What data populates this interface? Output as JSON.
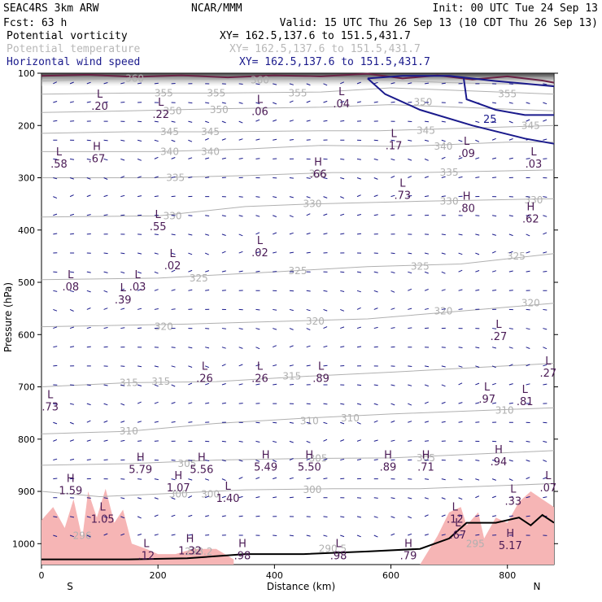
{
  "header": {
    "model": "SEAC4RS   3km ARW",
    "source": "NCAR/MMM",
    "init": "Init: 00 UTC Tue 24 Sep 13",
    "fcst": "Fcst:    63 h",
    "valid": "Valid: 15 UTC Thu 26 Sep 13 (10 CDT Thu 26 Sep 13)",
    "fields": [
      {
        "name": "Potential vorticity",
        "xy": "XY= 162.5,137.6 to 151.5,431.7",
        "color": "#000000"
      },
      {
        "name": "Potential temperature",
        "xy": "XY= 162.5,137.6 to 151.5,431.7",
        "color": "#b8b8b8"
      },
      {
        "name": "Horizontal wind speed",
        "xy": "XY= 162.5,137.6 to 151.5,431.7",
        "color": "#1a1a8c"
      }
    ]
  },
  "chart_data": {
    "type": "cross-section",
    "xlabel": "Distance (km)",
    "ylabel": "Pressure (hPa)",
    "xlim": [
      0,
      880
    ],
    "ylim": [
      1040,
      100
    ],
    "x_ticks": [
      0,
      200,
      400,
      600,
      800
    ],
    "y_ticks": [
      100,
      200,
      300,
      400,
      500,
      600,
      700,
      800,
      900,
      1000
    ],
    "x_end_labels": {
      "left": "S",
      "right": "N"
    },
    "colors": {
      "theta": "#b0b0b0",
      "pv_labels": "#4a1a55",
      "wind": "#1a1a8c",
      "shade": "#f6b5b5",
      "terrain": "#000000"
    },
    "theta_isentropes": [
      {
        "value": "360",
        "points": [
          [
            0,
            115
          ],
          [
            150,
            110
          ],
          [
            300,
            112
          ],
          [
            460,
            108
          ],
          [
            560,
            112
          ],
          [
            700,
            118
          ],
          [
            880,
            122
          ]
        ],
        "labels": [
          [
            160,
            110
          ],
          [
            375,
            113
          ]
        ]
      },
      {
        "value": "355",
        "points": [
          [
            0,
            140
          ],
          [
            150,
            138
          ],
          [
            300,
            138
          ],
          [
            480,
            136
          ],
          [
            600,
            128
          ],
          [
            880,
            140
          ]
        ],
        "labels": [
          [
            210,
            138
          ],
          [
            300,
            138
          ],
          [
            440,
            138
          ],
          [
            800,
            140
          ]
        ]
      },
      {
        "value": "350",
        "points": [
          [
            0,
            175
          ],
          [
            150,
            172
          ],
          [
            300,
            168
          ],
          [
            480,
            165
          ],
          [
            600,
            160
          ],
          [
            880,
            172
          ]
        ],
        "labels": [
          [
            225,
            172
          ],
          [
            305,
            170
          ],
          [
            655,
            155
          ]
        ]
      },
      {
        "value": "345",
        "points": [
          [
            0,
            215
          ],
          [
            150,
            212
          ],
          [
            300,
            212
          ],
          [
            480,
            210
          ],
          [
            580,
            210
          ],
          [
            880,
            200
          ]
        ],
        "labels": [
          [
            220,
            212
          ],
          [
            290,
            212
          ],
          [
            660,
            210
          ],
          [
            840,
            200
          ]
        ]
      },
      {
        "value": "340",
        "points": [
          [
            0,
            250
          ],
          [
            200,
            250
          ],
          [
            350,
            245
          ],
          [
            480,
            238
          ],
          [
            620,
            240
          ],
          [
            800,
            232
          ],
          [
            880,
            232
          ]
        ],
        "labels": [
          [
            220,
            250
          ],
          [
            290,
            250
          ],
          [
            690,
            240
          ]
        ]
      },
      {
        "value": "335",
        "points": [
          [
            0,
            300
          ],
          [
            200,
            300
          ],
          [
            350,
            296
          ],
          [
            500,
            290
          ],
          [
            650,
            290
          ],
          [
            880,
            285
          ]
        ],
        "labels": [
          [
            230,
            300
          ],
          [
            475,
            292
          ],
          [
            700,
            290
          ]
        ]
      },
      {
        "value": "330",
        "points": [
          [
            0,
            375
          ],
          [
            200,
            373
          ],
          [
            350,
            355
          ],
          [
            470,
            350
          ],
          [
            650,
            345
          ],
          [
            880,
            340
          ]
        ],
        "labels": [
          [
            225,
            373
          ],
          [
            465,
            350
          ],
          [
            700,
            345
          ],
          [
            845,
            343
          ]
        ]
      },
      {
        "value": "325",
        "points": [
          [
            0,
            495
          ],
          [
            200,
            492
          ],
          [
            400,
            480
          ],
          [
            560,
            470
          ],
          [
            720,
            465
          ],
          [
            880,
            445
          ]
        ],
        "labels": [
          [
            270,
            492
          ],
          [
            440,
            478
          ],
          [
            650,
            470
          ],
          [
            815,
            450
          ]
        ]
      },
      {
        "value": "320",
        "points": [
          [
            0,
            585
          ],
          [
            250,
            580
          ],
          [
            400,
            575
          ],
          [
            560,
            570
          ],
          [
            720,
            555
          ],
          [
            880,
            540
          ]
        ],
        "labels": [
          [
            210,
            585
          ],
          [
            470,
            575
          ],
          [
            690,
            555
          ],
          [
            840,
            540
          ]
        ]
      },
      {
        "value": "315",
        "points": [
          [
            0,
            700
          ],
          [
            150,
            692
          ],
          [
            300,
            690
          ],
          [
            450,
            680
          ],
          [
            600,
            672
          ],
          [
            880,
            655
          ]
        ],
        "labels": [
          [
            150,
            692
          ],
          [
            205,
            690
          ],
          [
            430,
            680
          ]
        ]
      },
      {
        "value": "310",
        "points": [
          [
            0,
            790
          ],
          [
            150,
            785
          ],
          [
            300,
            770
          ],
          [
            450,
            760
          ],
          [
            600,
            752
          ],
          [
            880,
            740
          ]
        ],
        "labels": [
          [
            150,
            785
          ],
          [
            460,
            765
          ],
          [
            530,
            760
          ],
          [
            795,
            745
          ]
        ]
      },
      {
        "value": "305",
        "points": [
          [
            0,
            850
          ],
          [
            150,
            847
          ],
          [
            300,
            840
          ],
          [
            450,
            837
          ],
          [
            600,
            836
          ],
          [
            880,
            822
          ]
        ],
        "labels": [
          [
            250,
            847
          ],
          [
            475,
            837
          ],
          [
            660,
            836
          ]
        ]
      },
      {
        "value": "300",
        "points": [
          [
            0,
            900
          ],
          [
            100,
            910
          ],
          [
            200,
            905
          ],
          [
            350,
            897
          ],
          [
            500,
            895
          ],
          [
            650,
            895
          ],
          [
            880,
            885
          ]
        ],
        "labels": [
          [
            235,
            905
          ],
          [
            290,
            905
          ],
          [
            465,
            897
          ]
        ]
      },
      {
        "value": "296",
        "points": [
          [
            0,
            985
          ]
        ],
        "labels": [
          [
            70,
            985
          ]
        ]
      },
      {
        "value": "298.2",
        "points": [
          [
            210,
            1010
          ]
        ],
        "labels": [
          [
            270,
            1015
          ]
        ]
      },
      {
        "value": "290.5",
        "points": [
          [
            450,
            1008
          ]
        ],
        "labels": [
          [
            500,
            1010
          ]
        ]
      },
      {
        "value": "295",
        "points": [
          [
            730,
            1000
          ]
        ],
        "labels": [
          [
            745,
            1000
          ]
        ]
      }
    ],
    "pv_extrema": [
      {
        "type": "L",
        "value": ".20",
        "x": 100,
        "p": 150
      },
      {
        "type": "L",
        "value": ".22",
        "x": 205,
        "p": 165
      },
      {
        "type": "L",
        "value": ".06",
        "x": 375,
        "p": 160
      },
      {
        "type": "L",
        "value": ".04",
        "x": 515,
        "p": 145
      },
      {
        "type": "L",
        "value": ".58",
        "x": 30,
        "p": 260
      },
      {
        "type": "H",
        "value": ".67",
        "x": 95,
        "p": 250
      },
      {
        "type": "H",
        "value": ".66",
        "x": 475,
        "p": 280
      },
      {
        "type": "L",
        "value": ".17",
        "x": 605,
        "p": 225
      },
      {
        "type": "L",
        "value": ".09",
        "x": 730,
        "p": 240
      },
      {
        "type": "L",
        "value": ".03",
        "x": 845,
        "p": 260
      },
      {
        "type": "L",
        "value": ".73",
        "x": 620,
        "p": 320
      },
      {
        "type": "H",
        "value": ".80",
        "x": 730,
        "p": 345
      },
      {
        "type": "H",
        "value": ".62",
        "x": 840,
        "p": 365
      },
      {
        "type": "L",
        "value": ".55",
        "x": 200,
        "p": 380
      },
      {
        "type": "L",
        "value": ".02",
        "x": 375,
        "p": 430
      },
      {
        "type": "L",
        "value": ".02",
        "x": 225,
        "p": 455
      },
      {
        "type": "L",
        "value": ".08",
        "x": 50,
        "p": 495
      },
      {
        "type": "L",
        "value": ".03",
        "x": 165,
        "p": 495
      },
      {
        "type": "L",
        "value": ".39",
        "x": 140,
        "p": 520
      },
      {
        "type": "L",
        "value": ".27",
        "x": 785,
        "p": 590
      },
      {
        "type": "L",
        "value": ".27",
        "x": 870,
        "p": 660
      },
      {
        "type": "L",
        "value": ".26",
        "x": 280,
        "p": 670
      },
      {
        "type": "L",
        "value": ".26",
        "x": 375,
        "p": 670
      },
      {
        "type": "L",
        "value": ".89",
        "x": 480,
        "p": 670
      },
      {
        "type": "L",
        "value": ".73",
        "x": 15,
        "p": 725
      },
      {
        "type": "L",
        "value": ".97",
        "x": 765,
        "p": 710
      },
      {
        "type": "L",
        "value": ".81",
        "x": 830,
        "p": 715
      },
      {
        "type": "H",
        "value": "5.79",
        "x": 170,
        "p": 845
      },
      {
        "type": "H",
        "value": "5.56",
        "x": 275,
        "p": 845
      },
      {
        "type": "H",
        "value": "5.49",
        "x": 385,
        "p": 840
      },
      {
        "type": "H",
        "value": "5.50",
        "x": 460,
        "p": 840
      },
      {
        "type": "H",
        "value": ".89",
        "x": 595,
        "p": 840
      },
      {
        "type": "H",
        "value": ".71",
        "x": 660,
        "p": 840
      },
      {
        "type": "H",
        "value": ".94",
        "x": 785,
        "p": 830
      },
      {
        "type": "H",
        "value": "1.59",
        "x": 50,
        "p": 885
      },
      {
        "type": "H",
        "value": "1.07",
        "x": 235,
        "p": 880
      },
      {
        "type": "L",
        "value": "1.40",
        "x": 320,
        "p": 900
      },
      {
        "type": "L",
        "value": ".07",
        "x": 870,
        "p": 880
      },
      {
        "type": "L",
        "value": ".33",
        "x": 810,
        "p": 905
      },
      {
        "type": "L",
        "value": "1.05",
        "x": 105,
        "p": 940
      },
      {
        "type": "L",
        "value": ".12",
        "x": 710,
        "p": 940
      },
      {
        "type": "L",
        "value": ".67",
        "x": 715,
        "p": 970
      },
      {
        "type": "H",
        "value": "1.32",
        "x": 255,
        "p": 1000
      },
      {
        "type": "L",
        "value": ".12",
        "x": 180,
        "p": 1010
      },
      {
        "type": "H",
        "value": ".98",
        "x": 345,
        "p": 1010
      },
      {
        "type": "L",
        "value": ".98",
        "x": 510,
        "p": 1010
      },
      {
        "type": "H",
        "value": ".79",
        "x": 630,
        "p": 1010
      },
      {
        "type": "H",
        "value": "5.17",
        "x": 805,
        "p": 990
      }
    ],
    "wind_speed_contours": [
      {
        "value": "25",
        "points": [
          [
            560,
            110
          ],
          [
            590,
            140
          ],
          [
            650,
            170
          ],
          [
            740,
            200
          ],
          [
            830,
            225
          ],
          [
            880,
            235
          ]
        ],
        "label": [
          770,
          195
        ]
      },
      {
        "value": "",
        "points": [
          [
            560,
            110
          ],
          [
            620,
            105
          ],
          [
            700,
            105
          ],
          [
            780,
            115
          ],
          [
            880,
            125
          ]
        ],
        "label": null
      },
      {
        "value": "",
        "points": [
          [
            725,
            110
          ],
          [
            730,
            150
          ],
          [
            780,
            170
          ],
          [
            830,
            180
          ],
          [
            880,
            180
          ]
        ],
        "label": null
      }
    ],
    "pv_shaded_regions": [
      [
        [
          0,
          1040
        ],
        [
          0,
          955
        ],
        [
          20,
          930
        ],
        [
          40,
          970
        ],
        [
          55,
          915
        ],
        [
          70,
          990
        ],
        [
          80,
          900
        ],
        [
          95,
          950
        ],
        [
          110,
          895
        ],
        [
          125,
          960
        ],
        [
          140,
          935
        ],
        [
          155,
          1000
        ],
        [
          180,
          1010
        ],
        [
          200,
          1020
        ],
        [
          230,
          1020
        ],
        [
          260,
          1010
        ],
        [
          300,
          1010
        ],
        [
          330,
          1030
        ],
        [
          330,
          1040
        ]
      ],
      [
        [
          650,
          1040
        ],
        [
          680,
          985
        ],
        [
          700,
          940
        ],
        [
          720,
          930
        ],
        [
          730,
          965
        ],
        [
          750,
          940
        ],
        [
          760,
          990
        ],
        [
          780,
          950
        ],
        [
          800,
          960
        ],
        [
          820,
          920
        ],
        [
          840,
          900
        ],
        [
          860,
          915
        ],
        [
          880,
          930
        ],
        [
          880,
          1040
        ]
      ]
    ],
    "terrain": [
      [
        0,
        1030
      ],
      [
        150,
        1030
      ],
      [
        250,
        1028
      ],
      [
        350,
        1020
      ],
      [
        450,
        1020
      ],
      [
        560,
        1015
      ],
      [
        650,
        1010
      ],
      [
        700,
        990
      ],
      [
        730,
        960
      ],
      [
        780,
        960
      ],
      [
        820,
        950
      ],
      [
        840,
        965
      ],
      [
        860,
        945
      ],
      [
        880,
        960
      ]
    ]
  }
}
